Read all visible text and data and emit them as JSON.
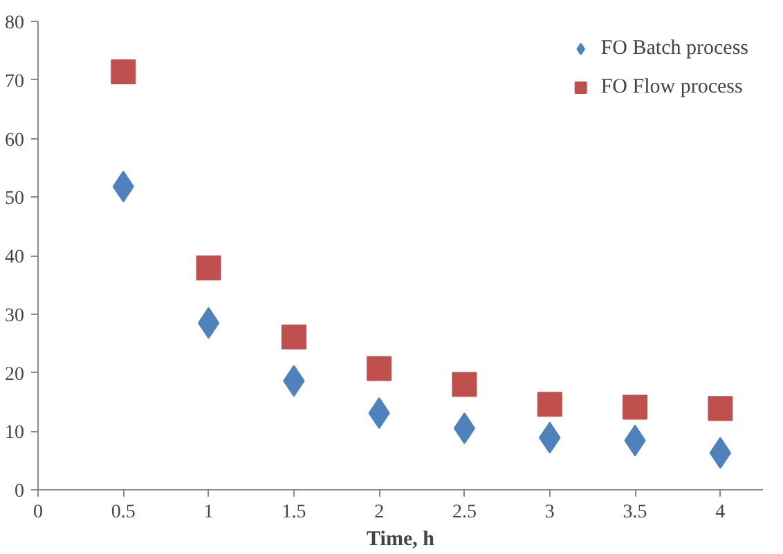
{
  "chart_data": {
    "type": "scatter",
    "xlabel": "Time, h",
    "x": [
      0.5,
      1,
      1.5,
      2,
      2.5,
      3,
      3.5,
      4
    ],
    "series": [
      {
        "name": "FO Batch process",
        "color": "#4f81bd",
        "marker": "diamond",
        "values": [
          51.8,
          28.5,
          18.6,
          13.1,
          10.5,
          8.9,
          8.4,
          6.3
        ]
      },
      {
        "name": "FO Flow process",
        "color": "#c0504d",
        "marker": "square",
        "values": [
          71.4,
          37.9,
          26.1,
          20.7,
          18.0,
          14.6,
          14.1,
          13.9
        ]
      }
    ],
    "xlim": [
      0,
      4.25
    ],
    "xticks": [
      0,
      0.5,
      1,
      1.5,
      2,
      2.5,
      3,
      3.5,
      4
    ],
    "ylim": [
      0,
      80
    ],
    "yticks": [
      0,
      10,
      20,
      30,
      40,
      50,
      60,
      70,
      80
    ],
    "grid": false,
    "legend": "top right"
  }
}
